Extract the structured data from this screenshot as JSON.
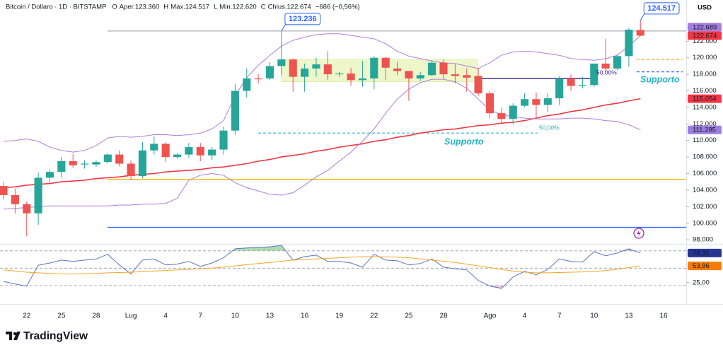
{
  "header": {
    "symbol": "Bitcoin / Dollaro · 1D · BITSTAMP",
    "ohlc": [
      {
        "key": "O",
        "name": "Aper.",
        "value": "123.360"
      },
      {
        "key": "H",
        "name": "Max.",
        "value": "124.517"
      },
      {
        "key": "L",
        "name": "Min.",
        "value": "122.620"
      },
      {
        "key": "C",
        "name": "Chius.",
        "value": "122.674"
      }
    ],
    "change": "−686 (−0,56%)",
    "currency": "USD"
  },
  "brand": "TradingView",
  "chart_data": [
    {
      "type": "candlestick",
      "categories": [
        null,
        null,
        "22",
        null,
        null,
        "25",
        null,
        null,
        "28",
        null,
        null,
        "Lug",
        null,
        null,
        "4",
        null,
        null,
        "7",
        null,
        null,
        "10",
        null,
        null,
        "13",
        null,
        null,
        "16",
        null,
        null,
        "19",
        null,
        null,
        "22",
        null,
        null,
        "25",
        null,
        null,
        "28",
        null,
        null,
        null,
        "Ago",
        null,
        null,
        "4",
        null,
        null,
        "7",
        null,
        null,
        "10",
        null,
        null,
        "13",
        null,
        null,
        "16"
      ],
      "open": [
        104500,
        103400,
        102300,
        101200,
        105500,
        106200,
        107500,
        107100,
        107100,
        107400,
        108300,
        107200,
        105700,
        108800,
        109600,
        108000,
        108300,
        109200,
        108200,
        108900,
        111200,
        116000,
        117500,
        117500,
        119000,
        119800,
        117700,
        118700,
        119200,
        118000,
        118100,
        117300,
        117500,
        120000,
        118700,
        118400,
        117500,
        117900,
        119400,
        118000,
        117900,
        117800,
        115700,
        113300,
        112600,
        114200,
        115000,
        114300,
        115100,
        117500,
        116600,
        116700,
        119300,
        118700,
        120200,
        123360,
        null,
        null
      ],
      "high": [
        105000,
        104200,
        102600,
        106100,
        106500,
        108000,
        108400,
        107600,
        107600,
        108500,
        108800,
        107600,
        109800,
        110500,
        109800,
        108500,
        109700,
        109700,
        109200,
        111700,
        116800,
        118700,
        118000,
        119500,
        123236,
        119900,
        119300,
        120000,
        120800,
        118300,
        118800,
        119600,
        120200,
        120100,
        119500,
        118400,
        118300,
        119700,
        119800,
        119200,
        118700,
        118800,
        116000,
        114000,
        114500,
        115700,
        115800,
        115700,
        117800,
        118000,
        117700,
        119300,
        122300,
        120400,
        123600,
        124517,
        null,
        null
      ],
      "low": [
        102900,
        101200,
        98400,
        99800,
        104900,
        105500,
        106700,
        106600,
        106800,
        107200,
        106900,
        105200,
        105400,
        108300,
        107400,
        107800,
        107900,
        107500,
        107600,
        108300,
        110700,
        115200,
        116900,
        117300,
        117900,
        115900,
        115900,
        117700,
        117300,
        117700,
        116600,
        116500,
        116200,
        117300,
        117900,
        114800,
        117200,
        117800,
        117500,
        116900,
        115900,
        115400,
        112700,
        112000,
        112000,
        114000,
        112700,
        113400,
        114300,
        116000,
        116300,
        116500,
        118200,
        118500,
        118900,
        122620,
        null,
        null
      ],
      "close": [
        103400,
        102300,
        101200,
        105500,
        106200,
        107500,
        107000,
        107200,
        107400,
        108300,
        107200,
        105700,
        108800,
        109600,
        108000,
        108300,
        109200,
        108200,
        108900,
        111200,
        116000,
        117500,
        117400,
        119000,
        119800,
        117700,
        118700,
        119200,
        118000,
        118100,
        117300,
        117500,
        120000,
        118800,
        118400,
        117500,
        117900,
        119400,
        118000,
        117800,
        117600,
        115700,
        113300,
        112600,
        114200,
        115000,
        114300,
        115100,
        117500,
        116600,
        116700,
        119300,
        118700,
        120200,
        123400,
        122674,
        null,
        null
      ],
      "up_color": "#26a69a",
      "down_color": "#ef5350",
      "lines": [
        {
          "color": "#f23645",
          "width": 1.6,
          "values": [
            104300,
            104400,
            104600,
            104700,
            104800,
            105000,
            105100,
            105200,
            105400,
            105500,
            105600,
            105800,
            105900,
            106000,
            106200,
            106300,
            106400,
            106500,
            106700,
            106800,
            107000,
            107200,
            107500,
            107700,
            108000,
            108200,
            108400,
            108700,
            108900,
            109200,
            109400,
            109600,
            109900,
            110100,
            110400,
            110600,
            110900,
            111100,
            111300,
            111400,
            111600,
            111800,
            111900,
            112100,
            112200,
            112400,
            112700,
            113000,
            113200,
            113500,
            113700,
            114000,
            114300,
            114500,
            114800,
            115054,
            null,
            null
          ]
        },
        {
          "color": "#b07cd8",
          "width": 1,
          "values": [
            109900,
            110000,
            110200,
            109900,
            109200,
            108800,
            108600,
            108800,
            109400,
            110300,
            110500,
            110400,
            110500,
            110700,
            110700,
            110600,
            110700,
            110900,
            111400,
            112400,
            115400,
            117600,
            119100,
            120300,
            121400,
            122100,
            122500,
            122800,
            122900,
            122900,
            122700,
            122500,
            122300,
            121700,
            120800,
            120200,
            119900,
            119600,
            119400,
            119300,
            119000,
            118700,
            119400,
            120300,
            120700,
            120800,
            120700,
            120500,
            120300,
            119900,
            119800,
            119700,
            119900,
            120300,
            121400,
            122689,
            null,
            null
          ]
        },
        {
          "color": "#b07cd8",
          "width": 1,
          "values": [
            101700,
            101800,
            101900,
            102000,
            102100,
            102100,
            102100,
            102100,
            102100,
            102100,
            102200,
            102200,
            102300,
            102300,
            102400,
            103000,
            105200,
            105800,
            106000,
            105800,
            104900,
            104300,
            103900,
            103500,
            103400,
            103700,
            104600,
            105600,
            106400,
            107500,
            108600,
            109900,
            111400,
            113300,
            115000,
            116200,
            117000,
            117400,
            117400,
            117100,
            116300,
            115000,
            113700,
            113100,
            112900,
            112700,
            112600,
            112600,
            112600,
            112700,
            112700,
            112600,
            112400,
            112300,
            111900,
            111285,
            null,
            null
          ]
        }
      ],
      "box": {
        "top": 119800,
        "bottom": 117100,
        "color": "#eef7c9"
      },
      "levels": [
        {
          "value": 123236,
          "color": "#b2b5be",
          "style": "solid"
        },
        {
          "value": 119800,
          "color": "#ff9800",
          "style": "dashed"
        },
        {
          "value": 118300,
          "color": "#2962ff",
          "style": "dashed"
        },
        {
          "value": 117500,
          "color": "#311b92",
          "style": "solid"
        },
        {
          "value": 110900,
          "color": "#22b5c8",
          "style": "dashed"
        },
        {
          "value": 105300,
          "color": "#f5b800",
          "style": "solid"
        },
        {
          "value": 99500,
          "color": "#2962ff",
          "style": "solid"
        }
      ],
      "annotations": [
        {
          "text": "123.236",
          "value": 123236
        },
        {
          "text": "124.517",
          "value": 124517
        }
      ],
      "support_labels": [
        "Supporto",
        "Supporto"
      ],
      "fib_labels": [
        "50,00%",
        "50,00%"
      ],
      "badges": [
        {
          "value": 122689,
          "label": "122.689",
          "color": "#a47de0"
        },
        {
          "value": 122674,
          "label": "122.674",
          "color": "#f23645"
        },
        {
          "value": 115054,
          "label": "115.054",
          "color": "#f23645"
        },
        {
          "value": 111285,
          "label": "111.285",
          "color": "#9c7ee0"
        }
      ],
      "ylim": [
        97500,
        126300
      ],
      "yticks": [
        {
          "value": 98000,
          "label": "98.000"
        },
        {
          "value": 100000,
          "label": "100.000"
        },
        {
          "value": 102000,
          "label": "102.000"
        },
        {
          "value": 104000,
          "label": "104.000"
        },
        {
          "value": 106000,
          "label": "106.000"
        },
        {
          "value": 108000,
          "label": "108.000"
        },
        {
          "value": 110000,
          "label": "110.000"
        },
        {
          "value": 112000,
          "label": "112.000"
        },
        {
          "value": 114000,
          "label": "114.000"
        },
        {
          "value": 116000,
          "label": "116.000"
        },
        {
          "value": 118000,
          "label": "118.000"
        },
        {
          "value": 120000,
          "label": "120.000"
        },
        {
          "value": 122000,
          "label": "122.000"
        }
      ]
    },
    {
      "type": "line",
      "categories": [
        null,
        null,
        "22",
        null,
        null,
        "25",
        null,
        null,
        "28",
        null,
        null,
        "Lug",
        null,
        null,
        "4",
        null,
        null,
        "7",
        null,
        null,
        "10",
        null,
        null,
        "13",
        null,
        null,
        "16",
        null,
        null,
        "19",
        null,
        null,
        "22",
        null,
        null,
        "25",
        null,
        null,
        "28",
        null,
        null,
        null,
        "Ago",
        null,
        null,
        "4",
        null,
        null,
        "7",
        null,
        null,
        "10",
        null,
        null,
        "13",
        null,
        null,
        "16"
      ],
      "series": [
        {
          "color": "#5b72c4",
          "values": [
            27,
            22.6,
            19,
            55,
            59,
            64,
            61.6,
            64,
            66,
            74,
            55.5,
            40,
            64,
            66,
            55.5,
            57,
            61.6,
            53,
            59,
            68,
            83.5,
            85,
            86,
            87,
            89.6,
            64,
            70,
            72.6,
            61.6,
            61.6,
            59,
            51.8,
            74,
            64,
            62.8,
            55.5,
            58,
            66,
            51.8,
            49,
            47,
            28.7,
            19,
            15,
            34.8,
            44.5,
            38.4,
            48,
            66,
            61.6,
            60.4,
            78.7,
            71.3,
            76.2,
            83.5,
            76.31,
            null,
            null
          ]
        },
        {
          "color": "#f5a623",
          "values": [
            47,
            45,
            43,
            42,
            41,
            40,
            40,
            40.5,
            41,
            42,
            42.5,
            43,
            44,
            45,
            46,
            47,
            48,
            49,
            50,
            52,
            54,
            56,
            58,
            60,
            62,
            64,
            65,
            66,
            67,
            68,
            69,
            70,
            70,
            69.5,
            69,
            68,
            66,
            64,
            62,
            60,
            57,
            54,
            51,
            48,
            45,
            43,
            42,
            42,
            42.5,
            43,
            43.5,
            44,
            46,
            48,
            51,
            53.96,
            null,
            null
          ]
        }
      ],
      "levels": [
        80,
        50,
        20
      ],
      "badges": [
        {
          "value": 76.31,
          "label": "76,31",
          "color": "#283593"
        },
        {
          "value": 53.96,
          "label": "53,96",
          "color": "#f57c00"
        }
      ],
      "ylim": [
        -12,
        92
      ],
      "yticks": [
        {
          "value": 25,
          "label": "25,00"
        }
      ]
    }
  ]
}
